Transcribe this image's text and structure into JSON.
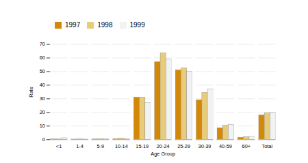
{
  "chart_data": {
    "type": "bar",
    "categories": [
      "<1",
      "1-4",
      "5-9",
      "10-14",
      "15-19",
      "20-24",
      "25-29",
      "30-39",
      "40-59",
      "60+",
      "Total"
    ],
    "series": [
      {
        "name": "1997",
        "color": "#D4880A",
        "values": [
          0.3,
          0.2,
          0.3,
          0.5,
          31.0,
          57.0,
          51.0,
          29.0,
          8.5,
          1.5,
          18.0
        ]
      },
      {
        "name": "1998",
        "color": "#E8CC7A",
        "values": [
          0.3,
          0.3,
          0.5,
          1.0,
          31.0,
          63.5,
          52.5,
          34.5,
          10.5,
          2.0,
          19.5
        ]
      },
      {
        "name": "1999",
        "color": "#F2F2F2",
        "values": [
          1.2,
          0.2,
          0.3,
          0.5,
          27.0,
          59.0,
          50.0,
          37.0,
          11.0,
          2.2,
          20.0
        ]
      }
    ],
    "ylim": [
      0,
      70
    ],
    "yticks": [
      0,
      10,
      20,
      30,
      40,
      50,
      60,
      70
    ],
    "ylabel": "Rate",
    "xlabel": "Age Group",
    "grid": true,
    "legend": "upper left"
  }
}
